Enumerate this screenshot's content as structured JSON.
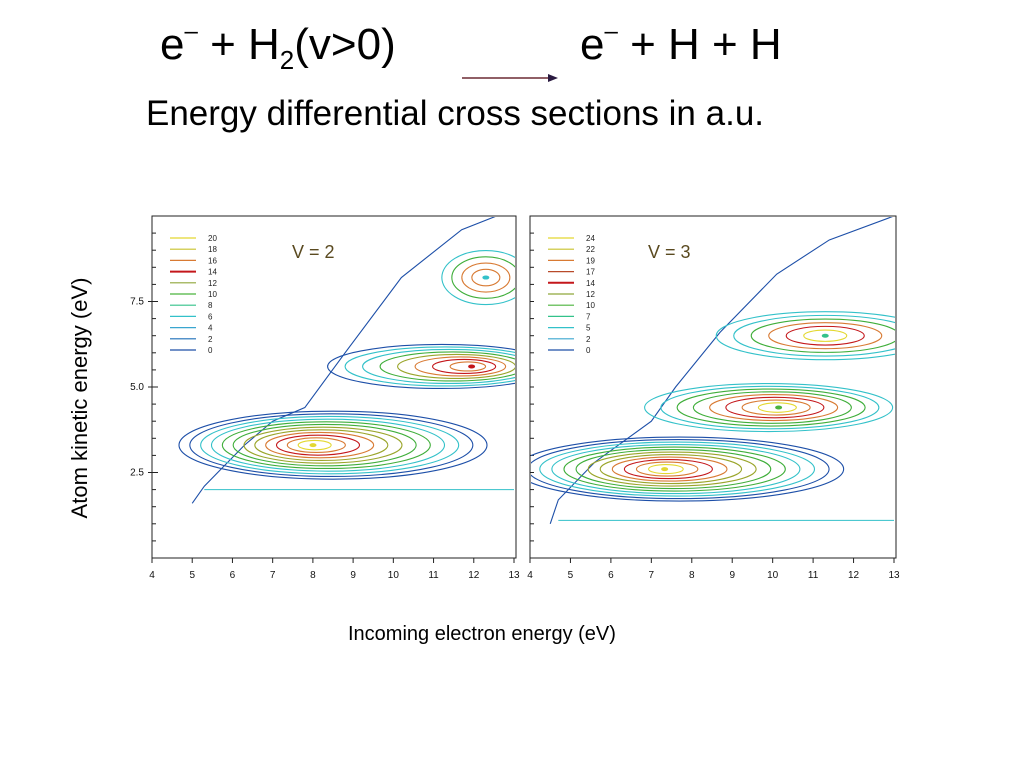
{
  "title": {
    "lhs": {
      "e": "e",
      "charge": "–",
      "plus": "+",
      "species": "H",
      "subscript": "2",
      "state": "(v>0)"
    },
    "rhs": {
      "e": "e",
      "charge": "–",
      "products": "+ H + H"
    }
  },
  "subtitle": "Energy differential cross sections in a.u.",
  "ylabel": "Atom kinetic energy (eV)",
  "xlabel": "Incoming electron energy (eV)",
  "colors": {
    "contour_low": "#1d4fa8",
    "contour_cyan": "#33c1c9",
    "contour_green": "#3fae3a",
    "contour_olive": "#9aa52a",
    "contour_orange": "#d87a33",
    "contour_red": "#c4171b",
    "contour_yellow": "#e3d830"
  },
  "chart_data": [
    {
      "type": "contour",
      "label": "V = 2",
      "x_ticks": [
        4,
        5,
        6,
        7,
        8,
        9,
        10,
        11,
        12,
        13
      ],
      "y_ticks": [
        "2.5",
        "5.0",
        "7.5"
      ],
      "xlim": [
        4,
        13
      ],
      "ylim": [
        0,
        10
      ],
      "legend_levels": [
        "20",
        "18",
        "16",
        "14",
        "12",
        "10",
        "8",
        "6",
        "4",
        "2",
        "0"
      ],
      "legend_colors": [
        "#e3d830",
        "#c9c22c",
        "#d87a33",
        "#c4171b",
        "#8fa63a",
        "#4bb33d",
        "#33c28a",
        "#33c1c9",
        "#3aa6cf",
        "#1d6fb8",
        "#1d4fa8"
      ],
      "legend": "top-left",
      "lobes": [
        {
          "x_peak": 8.5,
          "y_peak": 3.3,
          "max_level": 20
        },
        {
          "x_peak": 11.2,
          "y_peak": 5.6,
          "max_level": 14
        },
        {
          "x_peak": 12.3,
          "y_peak": 8.2,
          "max_level": 6
        }
      ]
    },
    {
      "type": "contour",
      "label": "V = 3",
      "x_ticks": [
        4,
        5,
        6,
        7,
        8,
        9,
        10,
        11,
        12,
        13
      ],
      "y_ticks": [],
      "xlim": [
        4,
        13
      ],
      "ylim": [
        0,
        10
      ],
      "legend_levels": [
        "24",
        "22",
        "19",
        "17",
        "14",
        "12",
        "10",
        "7",
        "5",
        "2",
        "0"
      ],
      "legend_colors": [
        "#e3d830",
        "#c9c22c",
        "#d87a33",
        "#b84a2a",
        "#c4171b",
        "#8fa63a",
        "#4bb33d",
        "#33c28a",
        "#33c1c9",
        "#3aa6cf",
        "#1d4fa8"
      ],
      "legend": "top-left",
      "lobes": [
        {
          "x_peak": 7.7,
          "y_peak": 2.6,
          "max_level": 24
        },
        {
          "x_peak": 9.9,
          "y_peak": 4.4,
          "max_level": 10
        },
        {
          "x_peak": 11.3,
          "y_peak": 6.5,
          "max_level": 7
        }
      ]
    }
  ]
}
